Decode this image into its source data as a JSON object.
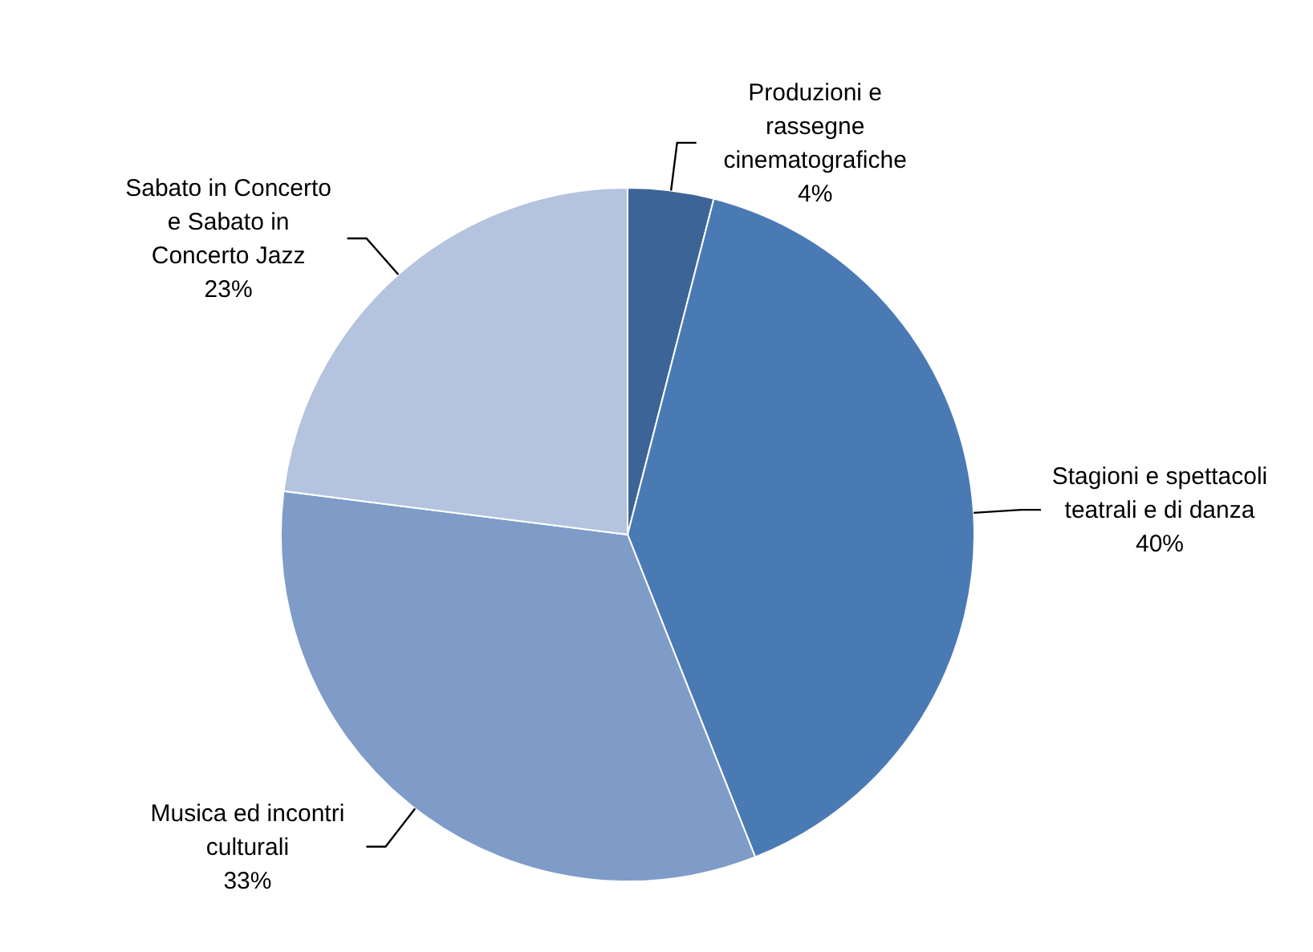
{
  "chart_data": {
    "type": "pie",
    "categories": [
      "Produzioni e\nrassegne\ncinematografiche",
      "Stagioni e spettacoli\nteatrali e di danza",
      "Musica ed incontri\nculturali",
      "Sabato in Concerto\ne Sabato in\nConcerto Jazz"
    ],
    "values": [
      4,
      40,
      33,
      23
    ],
    "value_labels": [
      "4%",
      "40%",
      "33%",
      "23%"
    ],
    "colors": [
      "#3d6496",
      "#4a7ab4",
      "#7f9cc8",
      "#b4c3de"
    ],
    "legend": false
  }
}
